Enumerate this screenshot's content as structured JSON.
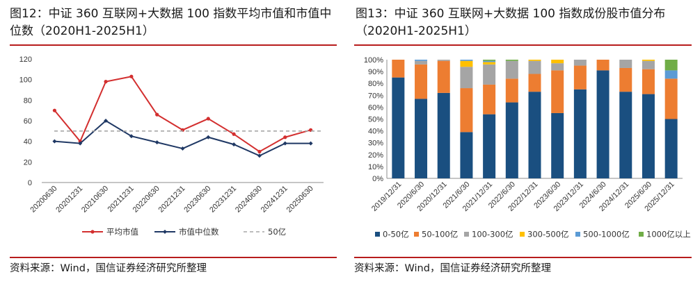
{
  "charts": {
    "left": {
      "title": "图12：中证 360 互联网+大数据 100 指数平均市值和市值中位数（2020H1-2025H1）",
      "source": "资料来源：Wind，国信证券经济研究所整理"
    },
    "right": {
      "title": "图13：中证 360 互联网+大数据 100 指数成份股市值分布（2020H1-2025H1）",
      "source": "资料来源：Wind，国信证券经济研究所整理"
    }
  },
  "chart_data": [
    {
      "type": "line",
      "title": "图12：中证 360 互联网+大数据 100 指数平均市值和市值中位数（2020H1-2025H1）",
      "x": [
        "20200630",
        "20201231",
        "20210630",
        "20211231",
        "20220630",
        "20221231",
        "20230630",
        "20231231",
        "20240630",
        "20241231",
        "20250630"
      ],
      "ylim": [
        0,
        120
      ],
      "yticks": [
        0,
        20,
        40,
        60,
        80,
        100,
        120
      ],
      "series": [
        {
          "name": "平均市值",
          "color": "#d32f2f",
          "values": [
            70,
            40,
            98,
            103,
            66,
            51,
            62,
            47,
            30,
            44,
            51
          ]
        },
        {
          "name": "市值中位数",
          "color": "#1f3864",
          "values": [
            40,
            38,
            60,
            45,
            39,
            33,
            44,
            37,
            26,
            38,
            38
          ]
        },
        {
          "name": "50亿",
          "color": "#a6a6a6",
          "dashed": true,
          "values": [
            50,
            50,
            50,
            50,
            50,
            50,
            50,
            50,
            50,
            50,
            50
          ]
        }
      ]
    },
    {
      "type": "bar",
      "stacked": true,
      "title": "图13：中证 360 互联网+大数据 100 指数成份股市值分布（2020H1-2025H1）",
      "categories": [
        "2019/12/31",
        "2020/6/30",
        "2020/12/31",
        "2021/6/30",
        "2021/12/31",
        "2022/6/30",
        "2022/12/31",
        "2023/6/30",
        "2023/12/31",
        "2024/6/30",
        "2024/12/31",
        "2025/6/30",
        "2025/12/31"
      ],
      "ylim": [
        0,
        100
      ],
      "yticks": [
        "0%",
        "10%",
        "20%",
        "30%",
        "40%",
        "50%",
        "60%",
        "70%",
        "80%",
        "90%",
        "100%"
      ],
      "series": [
        {
          "name": "0-50亿",
          "color": "#1a4f80",
          "values": [
            85,
            67,
            72,
            39,
            54,
            64,
            73,
            55,
            75,
            91,
            73,
            71,
            50
          ]
        },
        {
          "name": "50-100亿",
          "color": "#ed7d31",
          "values": [
            15,
            29,
            27,
            37,
            25,
            20,
            15,
            36,
            20,
            9,
            20,
            21,
            34
          ]
        },
        {
          "name": "100-300亿",
          "color": "#a5a5a5",
          "values": [
            0,
            3,
            1,
            18,
            17,
            15,
            11,
            6,
            5,
            0,
            7,
            7,
            0
          ]
        },
        {
          "name": "300-500亿",
          "color": "#ffc000",
          "values": [
            0,
            0,
            0,
            5,
            2,
            0,
            1,
            3,
            0,
            0,
            0,
            1,
            0
          ]
        },
        {
          "name": "500-1000亿",
          "color": "#5b9bd5",
          "values": [
            0,
            1,
            0,
            1,
            1,
            0,
            0,
            0,
            0,
            0,
            0,
            0,
            7
          ]
        },
        {
          "name": "1000亿以上",
          "color": "#70ad47",
          "values": [
            0,
            0,
            0,
            0,
            1,
            1,
            0,
            0,
            0,
            0,
            0,
            0,
            9
          ]
        }
      ]
    }
  ]
}
